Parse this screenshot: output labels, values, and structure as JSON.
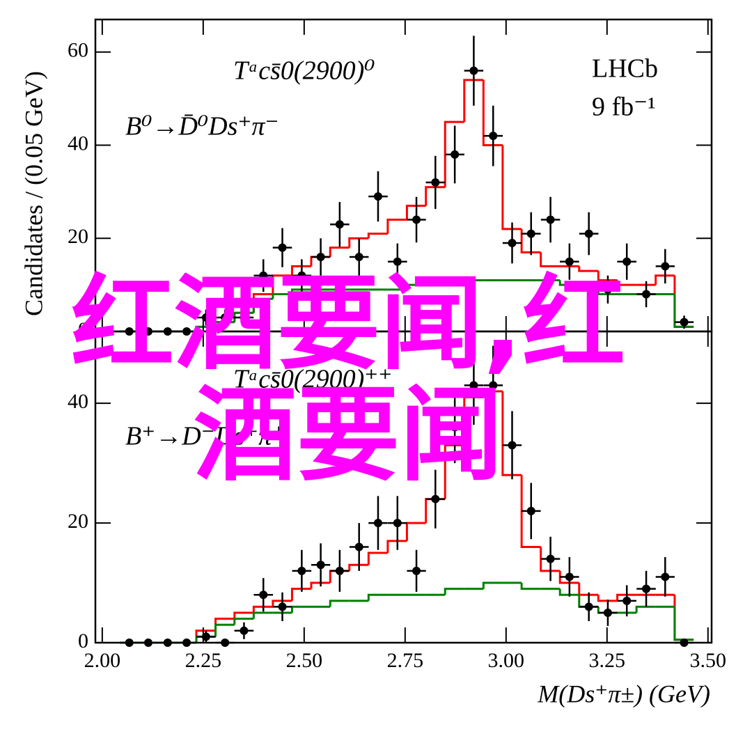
{
  "chart_data": [
    {
      "type": "scatter",
      "annotations": [
        "Tᵃcs̄0(2900)⁰",
        "B⁰→D̄⁰Ds⁺π⁻",
        "LHCb",
        "9 fb⁻¹"
      ],
      "y_label": "Candidates / (0.05 GeV)",
      "x": [
        2.067,
        2.114,
        2.162,
        2.209,
        2.257,
        2.304,
        2.351,
        2.399,
        2.446,
        2.494,
        2.541,
        2.588,
        2.636,
        2.683,
        2.731,
        2.778,
        2.825,
        2.873,
        2.92,
        2.968,
        3.015,
        3.062,
        3.11,
        3.157,
        3.205,
        3.252,
        3.299,
        3.347,
        3.394,
        3.441
      ],
      "values": [
        0,
        0,
        0,
        0,
        3,
        3,
        3,
        12,
        18,
        12,
        16,
        23,
        16,
        29,
        15,
        24,
        32,
        38,
        56,
        42,
        19,
        21,
        24,
        15,
        21,
        9,
        15,
        8,
        14,
        2
      ],
      "errors": [
        0,
        0,
        0,
        0,
        1.7,
        1.7,
        1.7,
        3.5,
        4.2,
        3.5,
        4,
        4.8,
        4,
        5.4,
        3.9,
        4.9,
        5.7,
        6.2,
        7.5,
        6.5,
        4.4,
        4.6,
        4.9,
        3.9,
        4.6,
        3,
        3.9,
        2.8,
        3.7,
        1.4
      ],
      "histograms": [
        {
          "color": "#ff0000",
          "values": [
            0,
            0,
            0,
            0,
            1,
            2,
            4,
            8,
            12,
            14,
            16,
            18,
            20,
            21,
            24,
            27,
            31,
            45,
            54,
            40,
            22,
            17,
            14,
            14,
            13,
            11,
            10,
            10,
            12,
            1
          ]
        },
        {
          "color": "#008000",
          "values": [
            0,
            0,
            0,
            0,
            1,
            2,
            4,
            7,
            8,
            9,
            9,
            9,
            9,
            9,
            9,
            10,
            10,
            10,
            11,
            11,
            11,
            11,
            11,
            10,
            9,
            8,
            8,
            8,
            8,
            1
          ]
        }
      ],
      "xlim": [
        1.983,
        3.509
      ],
      "ylim": [
        0,
        67
      ],
      "yticks": [
        0,
        20,
        40,
        60
      ]
    },
    {
      "type": "scatter",
      "annotations": [
        "Tᵃcs̄0(2900)⁺⁺",
        "B⁺→D⁻Ds⁺π⁺"
      ],
      "x_label": "M(Ds⁺π±) (GeV)",
      "x": [
        2.067,
        2.114,
        2.162,
        2.209,
        2.257,
        2.304,
        2.351,
        2.399,
        2.446,
        2.494,
        2.541,
        2.588,
        2.636,
        2.683,
        2.731,
        2.778,
        2.825,
        2.873,
        2.92,
        2.968,
        3.015,
        3.062,
        3.11,
        3.157,
        3.205,
        3.252,
        3.299,
        3.347,
        3.394,
        3.441
      ],
      "values": [
        0,
        0,
        0,
        0,
        1,
        0,
        2,
        8,
        6,
        12,
        13,
        12,
        16,
        20,
        20,
        12,
        24,
        36,
        43,
        43,
        33,
        22,
        14,
        11,
        6,
        5,
        7,
        9,
        11,
        0
      ],
      "errors": [
        0,
        0,
        0,
        0,
        1,
        0,
        1.4,
        2.8,
        2.4,
        3.5,
        3.6,
        3.5,
        4,
        4.5,
        4.5,
        3.5,
        4.9,
        6,
        6.6,
        6.6,
        5.7,
        4.7,
        3.7,
        3.3,
        2.4,
        2.2,
        2.6,
        3,
        3.3,
        0
      ],
      "histograms": [
        {
          "color": "#ff0000",
          "values": [
            0,
            0,
            0,
            0,
            2,
            4,
            5,
            6,
            7,
            9,
            10,
            12,
            13,
            15,
            17,
            20,
            24,
            33,
            41,
            42,
            28,
            16,
            12,
            10,
            8,
            7,
            8,
            8,
            8,
            0.5
          ]
        },
        {
          "color": "#008000",
          "values": [
            0,
            0,
            0,
            0,
            1,
            3,
            4,
            5,
            5,
            6,
            6,
            7,
            7,
            8,
            8,
            8,
            8,
            9,
            9,
            10,
            10,
            9,
            9,
            8,
            6,
            5,
            5,
            6,
            6,
            0.5
          ]
        }
      ],
      "xlim": [
        1.983,
        3.509
      ],
      "ylim": [
        0,
        52
      ],
      "yticks": [
        0,
        20,
        40
      ],
      "xticks": [
        {
          "value": 2,
          "label": "2.00"
        },
        {
          "value": 2.25,
          "label": "2.25"
        },
        {
          "value": 2.5,
          "label": "2.50"
        },
        {
          "value": 2.75,
          "label": "2.75"
        },
        {
          "value": 3,
          "label": "3.00"
        },
        {
          "value": 3.25,
          "label": "3.25"
        },
        {
          "value": 3.5,
          "label": "3.50"
        }
      ]
    }
  ],
  "watermark": "红酒要闻,红酒要闻"
}
